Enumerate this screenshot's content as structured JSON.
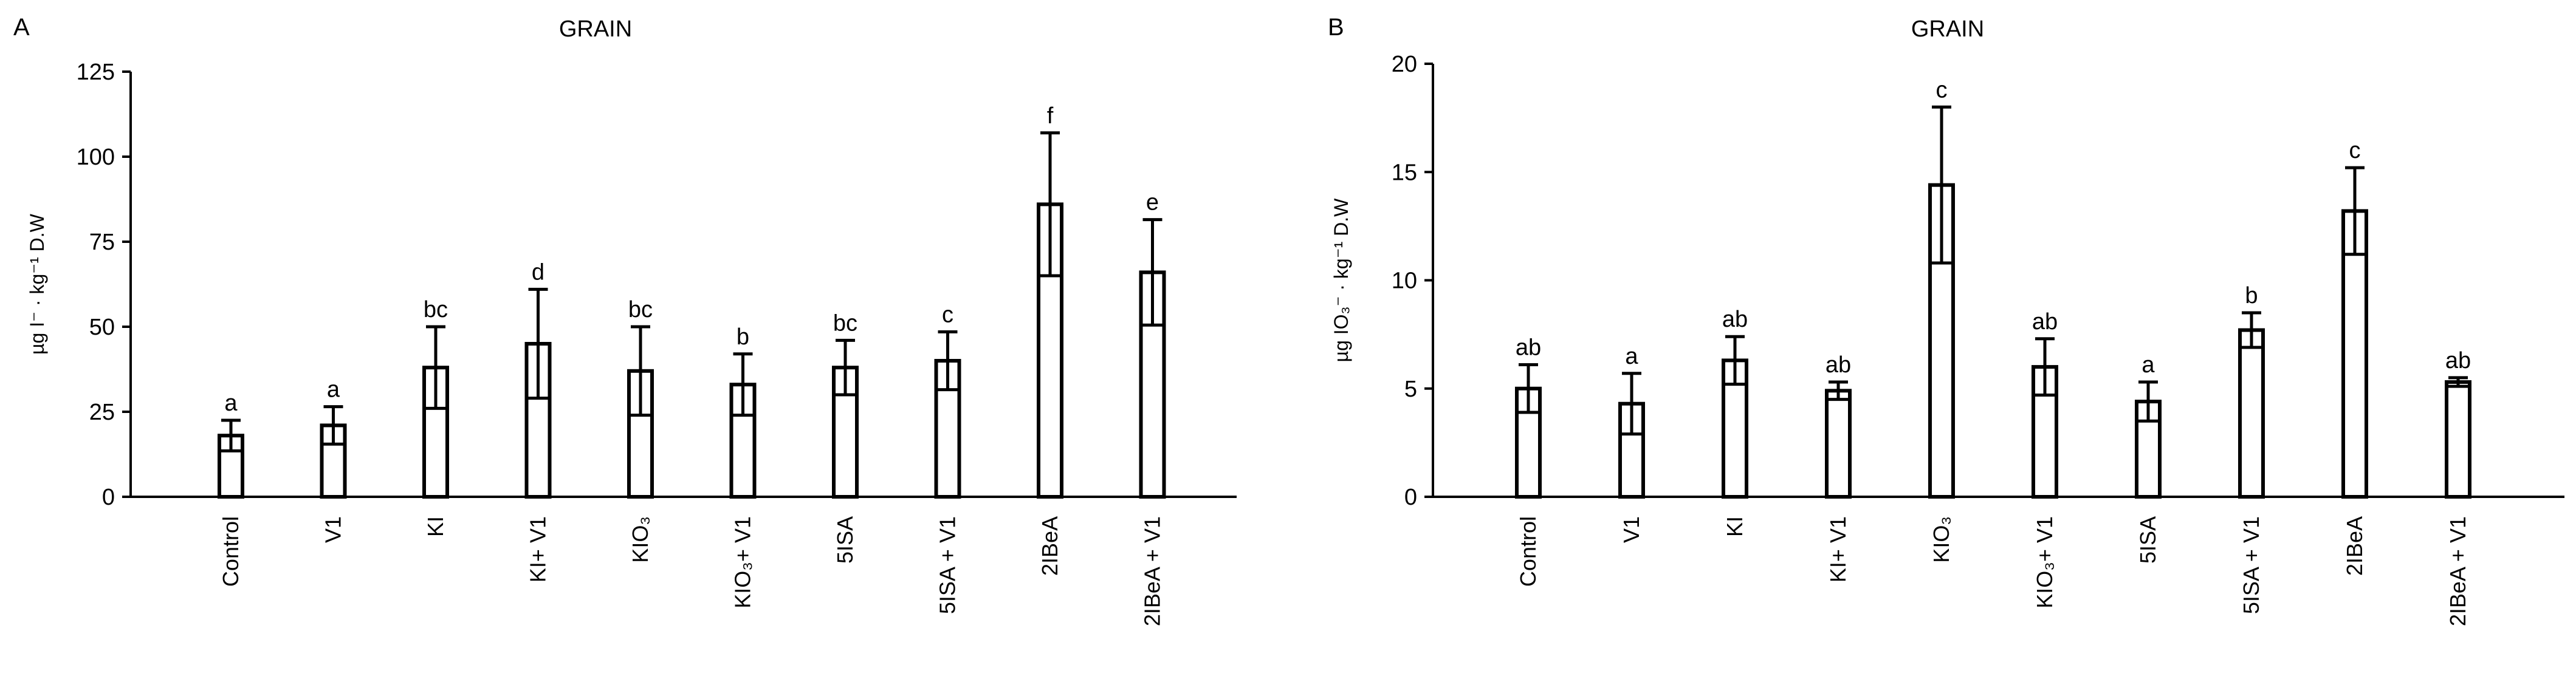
{
  "chart_data": [
    {
      "type": "bar",
      "panel_label": "A",
      "title": "GRAIN",
      "ylabel": "µg I⁻ · kg⁻¹ D.W",
      "xlabel": "",
      "ylim": [
        0,
        125
      ],
      "yticks": [
        0,
        25,
        50,
        75,
        100,
        125
      ],
      "grid": false,
      "legend": "none",
      "categories": [
        "Control",
        "V1",
        "KI",
        "KI+ V1",
        "KIO₃",
        "KIO₃+ V1",
        "5ISA",
        "5ISA + V1",
        "2IBeA",
        "2IBeA + V1"
      ],
      "values": [
        18,
        21,
        38,
        45,
        37,
        33,
        38,
        40,
        86,
        66
      ],
      "errors": [
        4.5,
        5.5,
        12,
        16,
        13,
        9,
        8,
        8.5,
        21,
        15.5
      ],
      "significance": [
        "a",
        "a",
        "bc",
        "d",
        "bc",
        "b",
        "bc",
        "c",
        "f",
        "e"
      ],
      "colors": {
        "bar_fill": "#ffffff",
        "stroke": "#000000"
      }
    },
    {
      "type": "bar",
      "panel_label": "B",
      "title": "GRAIN",
      "ylabel": "µg IO₃⁻ · kg⁻¹ D.W",
      "xlabel": "",
      "ylim": [
        0,
        20
      ],
      "yticks": [
        0,
        5,
        10,
        15,
        20
      ],
      "grid": false,
      "legend": "none",
      "categories": [
        "Control",
        "V1",
        "KI",
        "KI+ V1",
        "KIO₃",
        "KIO₃+ V1",
        "5ISA",
        "5ISA + V1",
        "2IBeA",
        "2IBeA + V1"
      ],
      "values": [
        5.0,
        4.3,
        6.3,
        4.9,
        14.4,
        6.0,
        4.4,
        7.7,
        13.2,
        5.3
      ],
      "errors": [
        1.1,
        1.4,
        1.1,
        0.4,
        3.6,
        1.3,
        0.9,
        0.8,
        2.0,
        0.2
      ],
      "significance": [
        "ab",
        "a",
        "ab",
        "ab",
        "c",
        "ab",
        "a",
        "b",
        "c",
        "ab"
      ],
      "colors": {
        "bar_fill": "#ffffff",
        "stroke": "#000000"
      }
    }
  ]
}
